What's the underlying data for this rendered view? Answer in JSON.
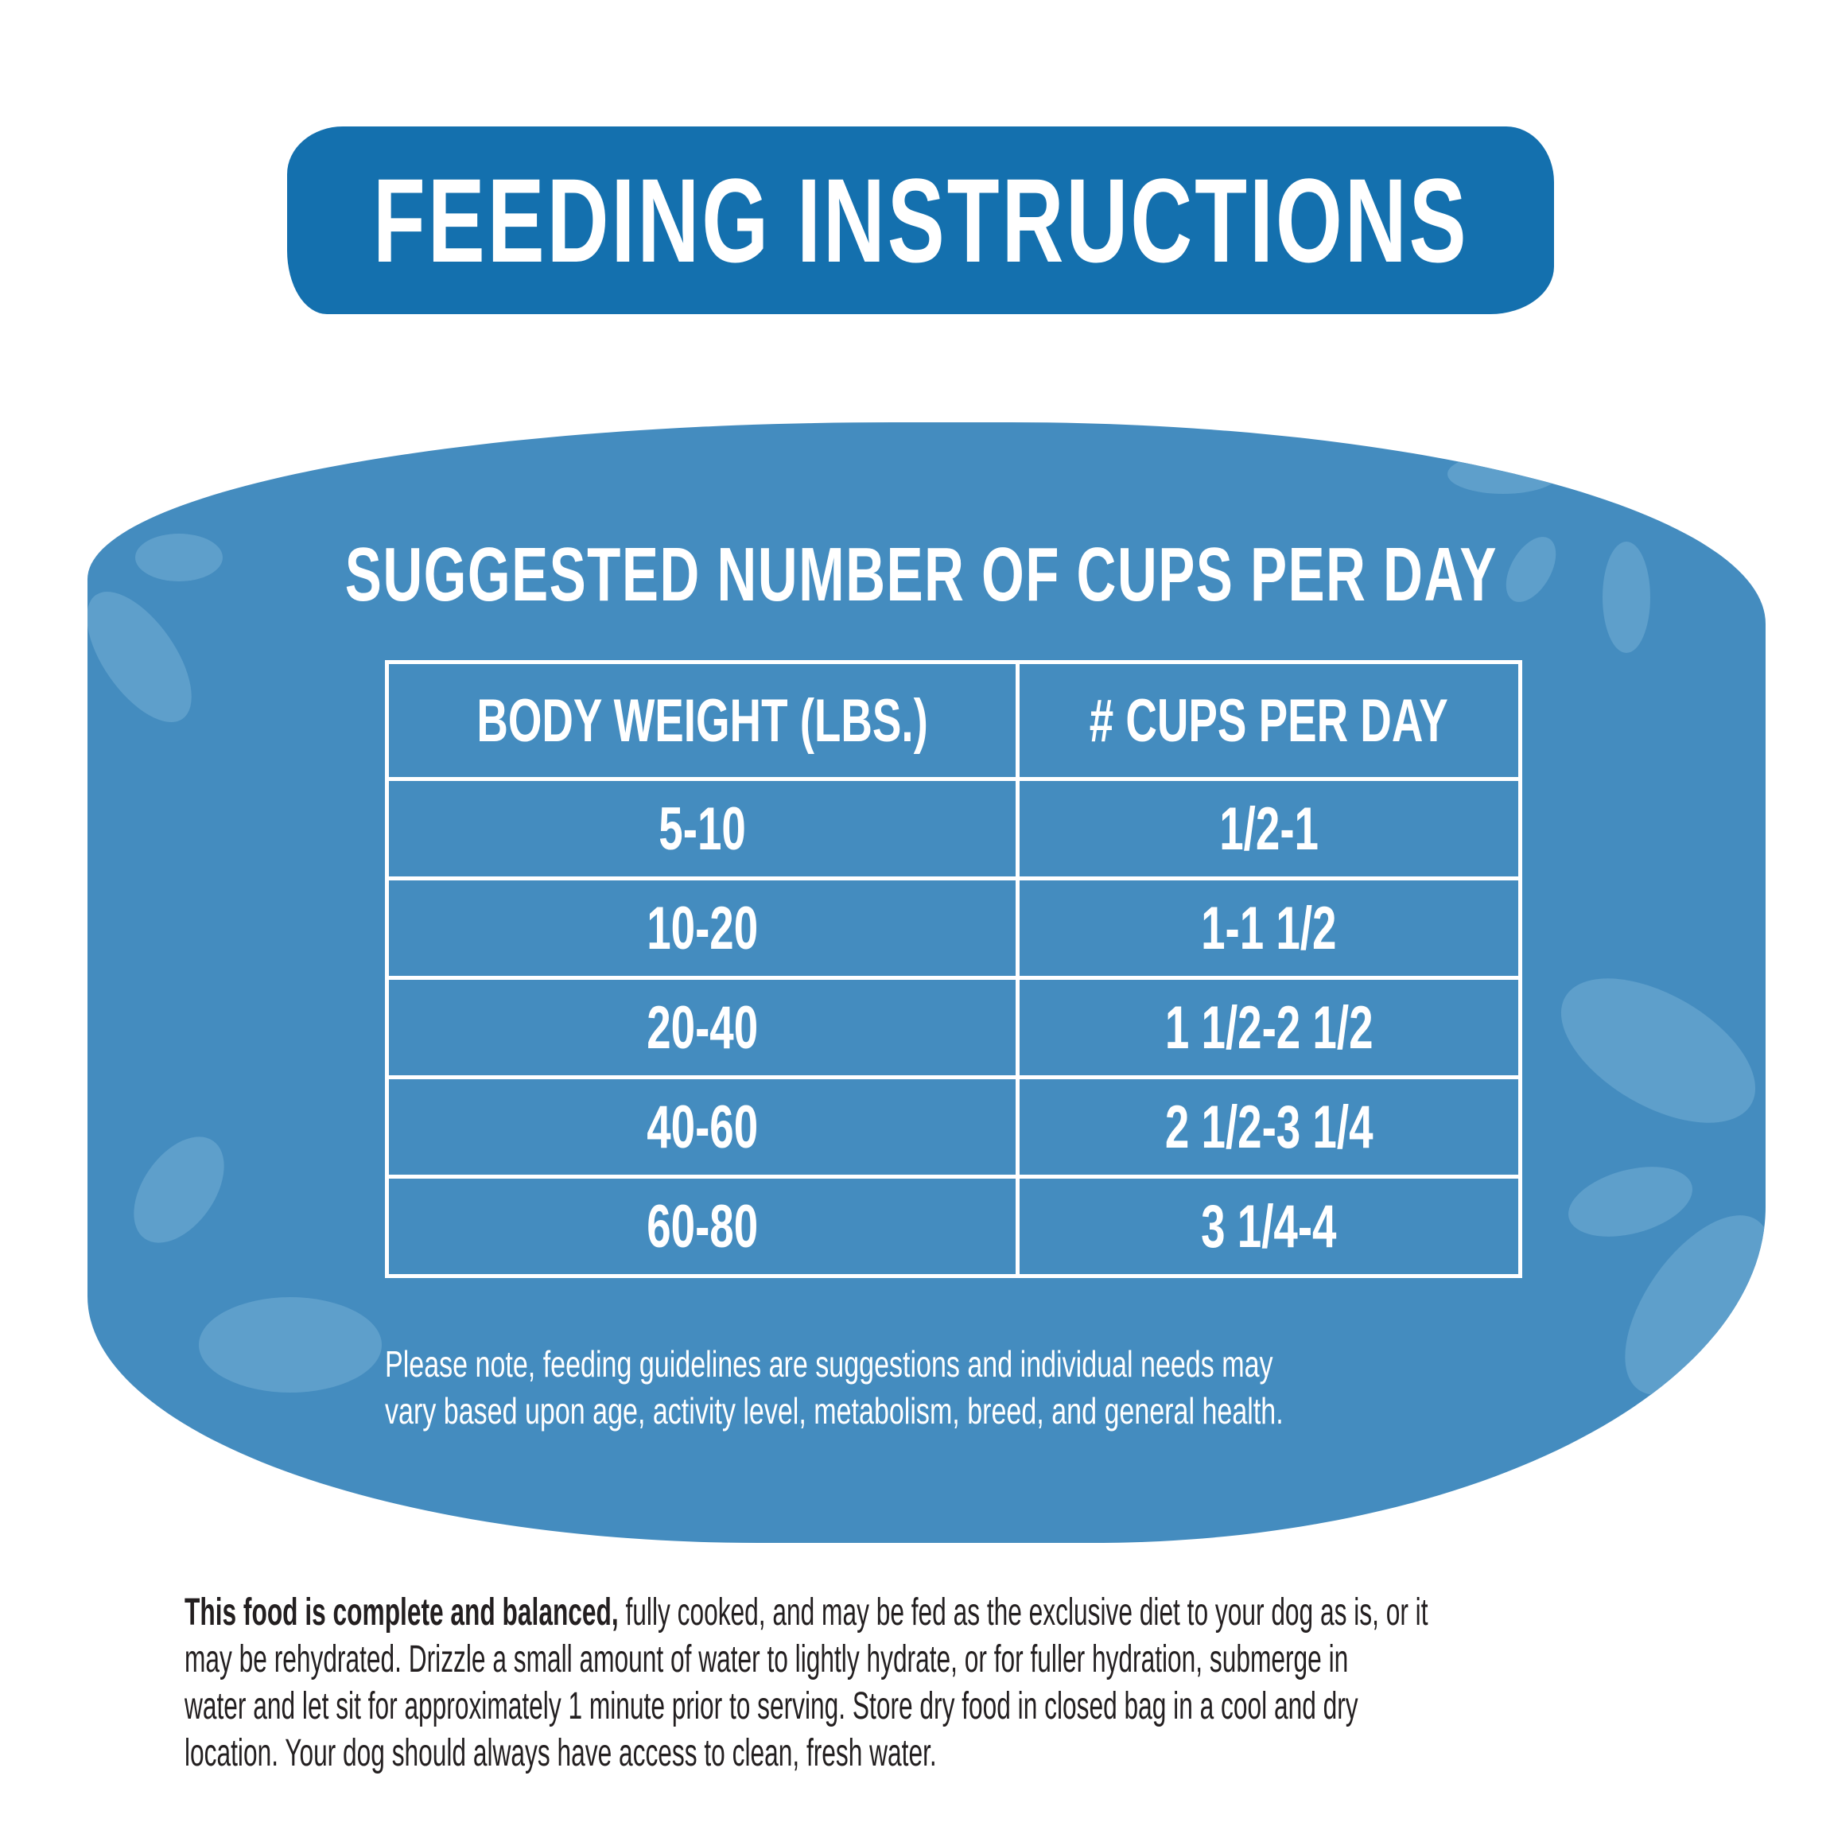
{
  "title": "FEEDING INSTRUCTIONS",
  "subtitle": "SUGGESTED NUMBER OF CUPS PER DAY",
  "table": {
    "headers": [
      "BODY WEIGHT (LBS.)",
      "# CUPS PER DAY"
    ],
    "rows": [
      [
        "5-10",
        "1/2-1"
      ],
      [
        "10-20",
        "1-1 1/2"
      ],
      [
        "20-40",
        "1 1/2-2 1/2"
      ],
      [
        "40-60",
        "2 1/2-3 1/4"
      ],
      [
        "60-80",
        "3 1/4-4"
      ]
    ]
  },
  "note": {
    "line1": "Please note, feeding guidelines are suggestions and individual needs may",
    "line2": "vary based upon age, activity level, metabolism, breed, and general health."
  },
  "paragraph": {
    "bold": "This food is complete and balanced,",
    "line1_rest": " fully cooked, and may be fed as the exclusive diet to your dog as is, or it",
    "line2": "may be rehydrated. Drizzle a small amount of water to lightly hydrate, or for fuller hydration, submerge in",
    "line3": "water and let sit for approximately 1 minute prior to serving. Store dry food in closed bag in a cool and dry",
    "line4": "location. Your dog should always have access to clean, fresh water."
  },
  "colors": {
    "banner": "#1470ae",
    "panel": "#448cbf",
    "spots": "#5e9fcb",
    "text": "#231f20"
  }
}
